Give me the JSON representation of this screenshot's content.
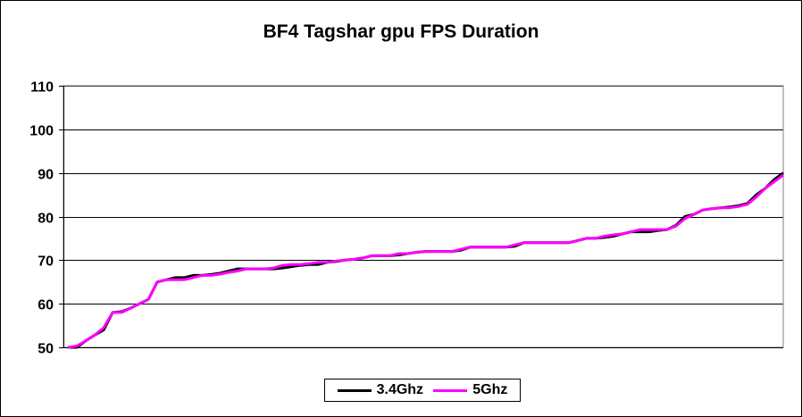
{
  "chart_data": {
    "type": "line",
    "title": "BF4 Tagshar gpu FPS Duration",
    "xlabel": "",
    "ylabel": "",
    "ylim": [
      50,
      110
    ],
    "yticks": [
      50,
      60,
      70,
      80,
      90,
      100,
      110
    ],
    "grid": true,
    "legend_position": "bottom",
    "x": [
      0,
      1,
      2,
      3,
      4,
      5,
      6,
      7,
      8,
      9,
      10,
      11,
      12,
      13,
      14,
      15,
      16,
      17,
      18,
      19,
      20,
      21,
      22,
      23,
      24,
      25,
      26,
      27,
      28,
      29,
      30,
      31,
      32,
      33,
      34,
      35,
      36,
      37,
      38,
      39,
      40,
      41,
      42,
      43,
      44,
      45,
      46,
      47,
      48,
      49,
      50,
      51,
      52,
      53,
      54,
      55,
      56,
      57,
      58,
      59,
      60,
      61,
      62,
      63,
      64,
      65,
      66,
      67,
      68,
      69,
      70,
      71,
      72,
      73,
      74,
      75,
      76,
      77,
      78,
      79,
      80
    ],
    "series": [
      {
        "name": "3.4Ghz",
        "color": "#000000",
        "values": [
          50,
          50,
          51.5,
          52.8,
          54,
          58,
          58.2,
          59,
          60,
          61,
          65,
          65.5,
          66,
          66,
          66.5,
          66.5,
          66.7,
          67,
          67.5,
          68,
          68,
          68,
          68,
          68,
          68.2,
          68.5,
          68.8,
          69,
          69,
          69.5,
          69.7,
          70,
          70.2,
          70.5,
          71,
          71,
          71,
          71.2,
          71.5,
          71.8,
          72,
          72,
          72,
          72,
          72.3,
          73,
          73,
          73,
          73,
          73,
          73.2,
          74,
          74,
          74,
          74,
          74,
          74,
          74.5,
          75,
          75,
          75.2,
          75.5,
          76,
          76.5,
          76.5,
          76.5,
          76.8,
          77,
          78,
          80,
          80.5,
          81.5,
          81.8,
          82,
          82.2,
          82.5,
          83,
          85,
          86.5,
          88.5,
          90
        ]
      },
      {
        "name": "5Ghz",
        "color": "#FF00FF",
        "values": [
          50,
          50.3,
          51.5,
          52.8,
          54.5,
          58,
          58,
          59,
          60,
          61,
          65,
          65.5,
          65.5,
          65.5,
          66,
          66.5,
          66.5,
          66.8,
          67.2,
          67.5,
          68,
          68,
          68,
          68.2,
          68.8,
          69,
          69,
          69.2,
          69.5,
          69.5,
          69.8,
          70,
          70.2,
          70.5,
          71,
          71,
          71,
          71.5,
          71.5,
          71.8,
          72,
          72,
          72,
          72,
          72.5,
          73,
          73,
          73,
          73,
          73,
          73.5,
          74,
          74,
          74,
          74,
          74,
          74,
          74.5,
          75,
          75,
          75.5,
          75.8,
          76,
          76.5,
          77,
          77,
          77,
          77,
          77.8,
          79.5,
          80.5,
          81.5,
          81.8,
          82,
          82,
          82.3,
          82.8,
          84.5,
          86.5,
          88,
          89.5
        ]
      }
    ]
  }
}
